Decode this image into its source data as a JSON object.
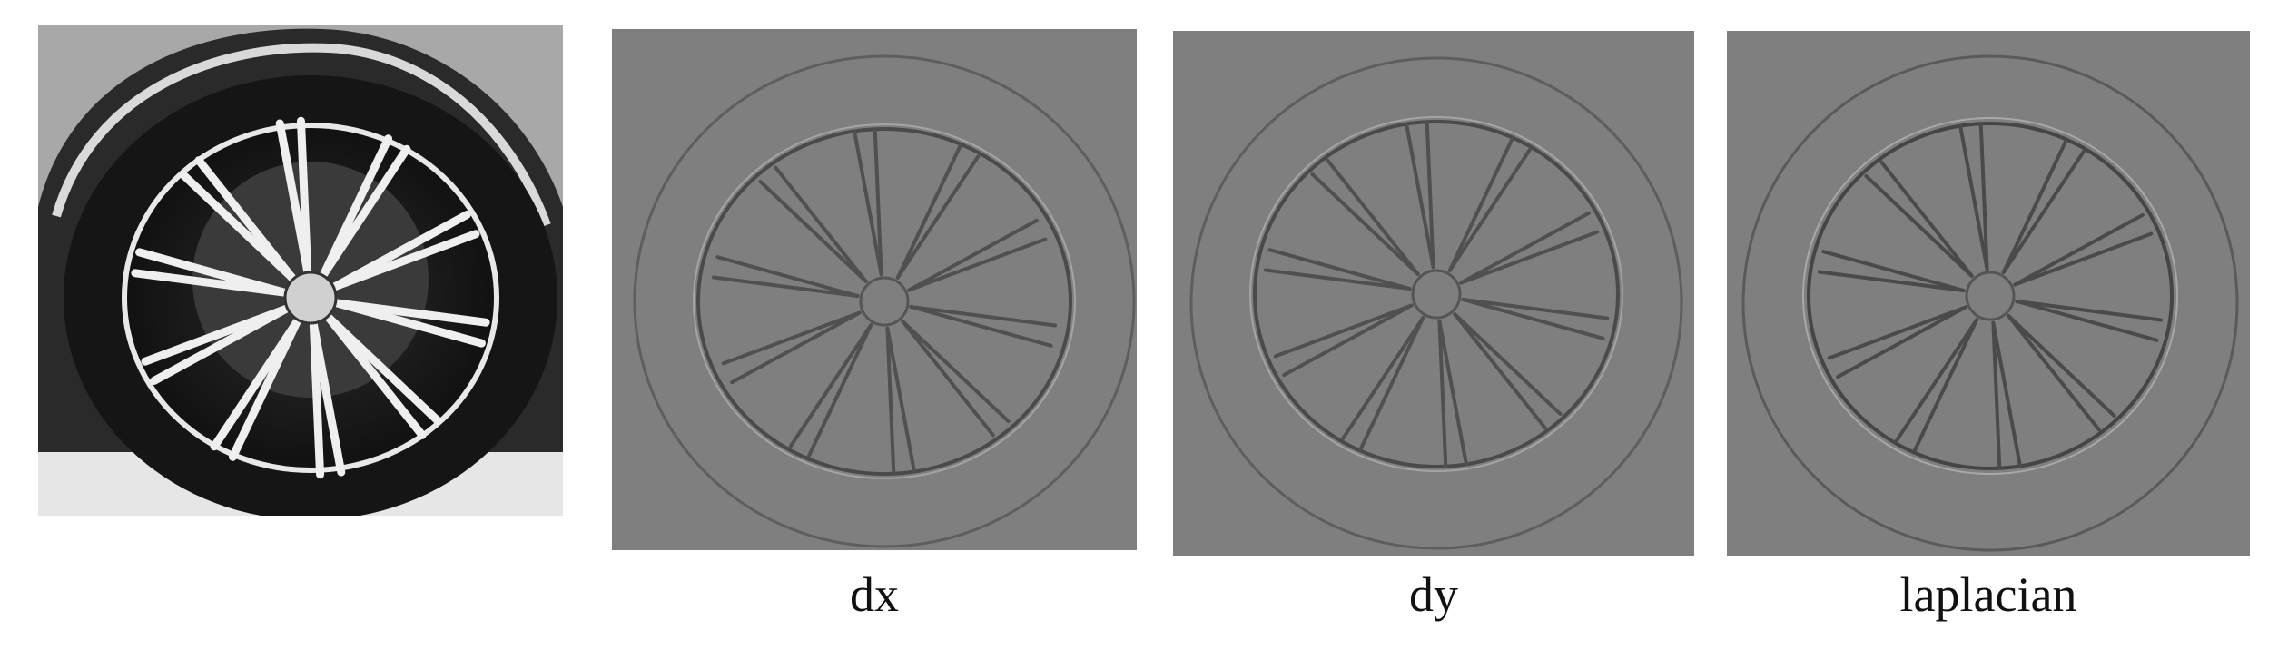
{
  "panels": [
    {
      "id": "original",
      "caption": "",
      "kind": "photo"
    },
    {
      "id": "dx",
      "caption": "dx",
      "kind": "edge",
      "bg": "#7f7f7f"
    },
    {
      "id": "dy",
      "caption": "dy",
      "kind": "edge",
      "bg": "#7f7f7f"
    },
    {
      "id": "laplacian",
      "caption": "laplacian",
      "kind": "edge",
      "bg": "#7f7f7f"
    }
  ]
}
